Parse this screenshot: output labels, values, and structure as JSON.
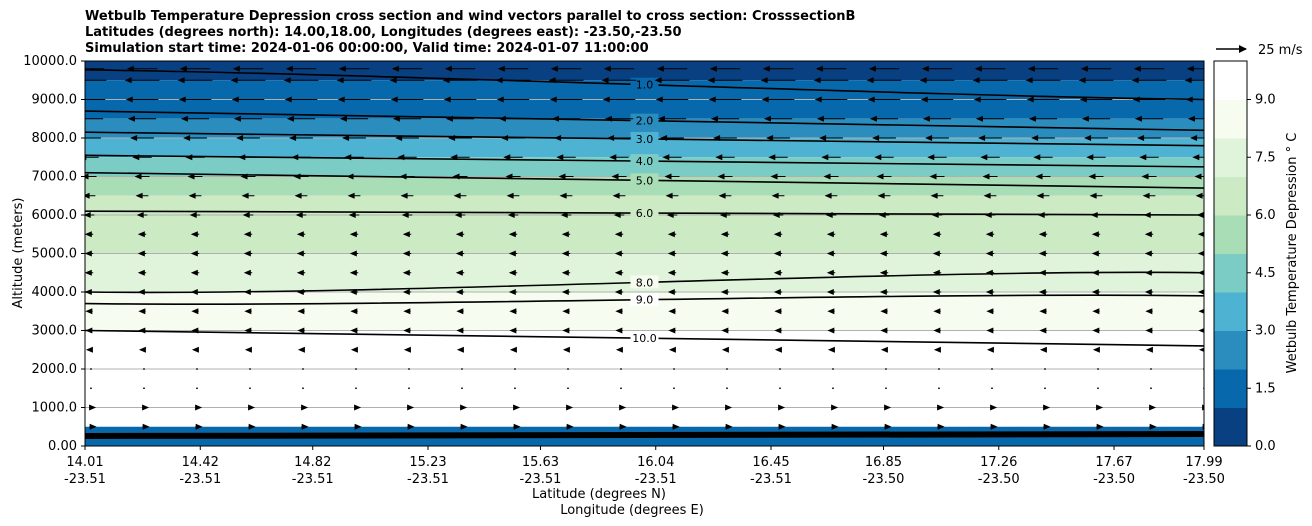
{
  "chart_data": {
    "type": "contour",
    "title_lines": [
      "Wetbulb Temperature Depression cross section and wind vectors parallel to cross section: CrosssectionB",
      "Latitudes (degrees north): 14.00,18.00, Longitudes (degrees east): -23.50,-23.50",
      "Simulation start time: 2024-01-06 00:00:00, Valid time: 2024-01-07 11:00:00"
    ],
    "ylabel": "Altitude (meters)",
    "xlabel": "Latitude (degrees N)",
    "xlabel2": "Longitude (degrees E)",
    "ylim": [
      0,
      10000
    ],
    "xlim": [
      14.01,
      17.99
    ],
    "yticks": [
      {
        "value": 0,
        "label": "0.00"
      },
      {
        "value": 1000,
        "label": "1000.0"
      },
      {
        "value": 2000,
        "label": "2000.0"
      },
      {
        "value": 3000,
        "label": "3000.0"
      },
      {
        "value": 4000,
        "label": "4000.0"
      },
      {
        "value": 5000,
        "label": "5000.0"
      },
      {
        "value": 6000,
        "label": "6000.0"
      },
      {
        "value": 7000,
        "label": "7000.0"
      },
      {
        "value": 8000,
        "label": "8000.0"
      },
      {
        "value": 9000,
        "label": "9000.0"
      },
      {
        "value": 10000,
        "label": "10000.0"
      }
    ],
    "xticks": [
      {
        "lat": 14.01,
        "label1": "14.01",
        "label2": "-23.51"
      },
      {
        "lat": 14.42,
        "label1": "14.42",
        "label2": "-23.51"
      },
      {
        "lat": 14.82,
        "label1": "14.82",
        "label2": "-23.51"
      },
      {
        "lat": 15.23,
        "label1": "15.23",
        "label2": "-23.51"
      },
      {
        "lat": 15.63,
        "label1": "15.63",
        "label2": "-23.51"
      },
      {
        "lat": 16.04,
        "label1": "16.04",
        "label2": "-23.51"
      },
      {
        "lat": 16.45,
        "label1": "16.45",
        "label2": "-23.51"
      },
      {
        "lat": 16.85,
        "label1": "16.85",
        "label2": "-23.50"
      },
      {
        "lat": 17.26,
        "label1": "17.26",
        "label2": "-23.50"
      },
      {
        "lat": 17.67,
        "label1": "17.67",
        "label2": "-23.50"
      },
      {
        "lat": 17.99,
        "label1": "17.99",
        "label2": "-23.50"
      }
    ],
    "colorbar": {
      "label": "Wetbulb Temperature Depression ° C",
      "range": [
        0,
        10
      ],
      "ticks": [
        {
          "value": 0,
          "label": "0.0"
        },
        {
          "value": 1.5,
          "label": "1.5"
        },
        {
          "value": 3,
          "label": "3.0"
        },
        {
          "value": 4.5,
          "label": "4.5"
        },
        {
          "value": 6,
          "label": "6.0"
        },
        {
          "value": 7.5,
          "label": "7.5"
        },
        {
          "value": 9,
          "label": "9.0"
        }
      ],
      "colors": [
        "#084081",
        "#0868ac",
        "#2b8cbe",
        "#4eb3d3",
        "#7bccc4",
        "#a8ddb5",
        "#ccebc5",
        "#e0f3db",
        "#f7fcf0",
        "#ffffff"
      ]
    },
    "quiver_key": {
      "label": "25 m/s"
    },
    "contour_levels": [
      {
        "value": 1.0,
        "label": "1.0",
        "left_alt": 9770,
        "right_alt": 9000
      },
      {
        "value": 2.0,
        "label": "2.0",
        "left_alt": 8700,
        "right_alt": 8200
      },
      {
        "value": 3.0,
        "label": "3.0",
        "left_alt": 8150,
        "right_alt": 7800
      },
      {
        "value": 4.0,
        "label": "4.0",
        "left_alt": 7550,
        "right_alt": 7250
      },
      {
        "value": 5.0,
        "label": "5.0",
        "left_alt": 7100,
        "right_alt": 6700
      },
      {
        "value": 6.0,
        "label": "6.0",
        "left_alt": 6100,
        "right_alt": 6000
      },
      {
        "value": 8.0,
        "label": "8.0",
        "left_alt": 4000,
        "right_alt": 4500
      },
      {
        "value": 9.0,
        "label": "9.0",
        "left_alt": 3700,
        "right_alt": 3900
      },
      {
        "value": 10.0,
        "label": "10.0",
        "left_alt": 3000,
        "right_alt": 2600
      }
    ],
    "field_bands": [
      {
        "alt_bottom": 9500,
        "alt_top": 10000,
        "value": 0.8
      },
      {
        "alt_bottom": 9000,
        "alt_top": 9500,
        "value": 1.3
      },
      {
        "alt_bottom": 8500,
        "alt_top": 9000,
        "value": 1.9
      },
      {
        "alt_bottom": 8000,
        "alt_top": 8500,
        "value": 2.6
      },
      {
        "alt_bottom": 7500,
        "alt_top": 8000,
        "value": 3.6
      },
      {
        "alt_bottom": 7000,
        "alt_top": 7500,
        "value": 4.6
      },
      {
        "alt_bottom": 6500,
        "alt_top": 7000,
        "value": 5.5
      },
      {
        "alt_bottom": 6000,
        "alt_top": 6500,
        "value": 6.1
      },
      {
        "alt_bottom": 5000,
        "alt_top": 6000,
        "value": 6.5
      },
      {
        "alt_bottom": 4000,
        "alt_top": 5000,
        "value": 7.2
      },
      {
        "alt_bottom": 3000,
        "alt_top": 4000,
        "value": 8.6
      },
      {
        "alt_bottom": 2000,
        "alt_top": 3000,
        "value": 9.3
      },
      {
        "alt_bottom": 500,
        "alt_top": 2000,
        "value": 10.0
      },
      {
        "alt_bottom": 0,
        "alt_top": 500,
        "value": 1.5
      }
    ],
    "wind_levels": [
      {
        "alt": 9800,
        "u": -12
      },
      {
        "alt": 9500,
        "u": -14
      },
      {
        "alt": 9000,
        "u": -13
      },
      {
        "alt": 8500,
        "u": -11
      },
      {
        "alt": 8000,
        "u": -9
      },
      {
        "alt": 7500,
        "u": -7
      },
      {
        "alt": 7000,
        "u": -5
      },
      {
        "alt": 6500,
        "u": -4
      },
      {
        "alt": 6000,
        "u": -3
      },
      {
        "alt": 5500,
        "u": -2
      },
      {
        "alt": 5000,
        "u": -2
      },
      {
        "alt": 4500,
        "u": -2
      },
      {
        "alt": 4000,
        "u": -2
      },
      {
        "alt": 3500,
        "u": -1.5
      },
      {
        "alt": 3000,
        "u": -1.5
      },
      {
        "alt": 2500,
        "u": -1
      },
      {
        "alt": 2000,
        "u": -0.5
      },
      {
        "alt": 1500,
        "u": 0.3
      },
      {
        "alt": 1000,
        "u": 1
      },
      {
        "alt": 500,
        "u": 1.5
      }
    ]
  }
}
